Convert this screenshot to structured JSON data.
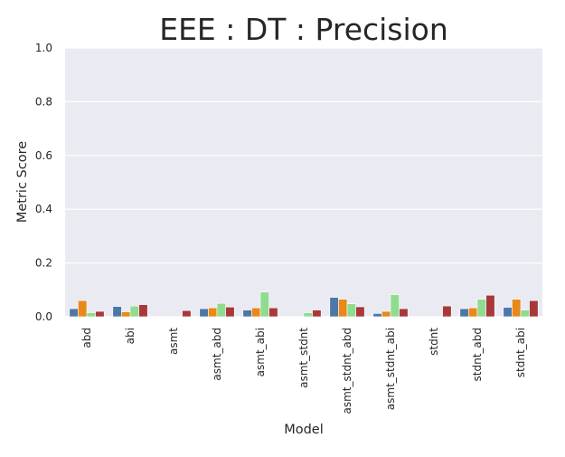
{
  "chart_data": {
    "type": "bar",
    "title": "EEE : DT : Precision",
    "xlabel": "Model",
    "ylabel": "Metric Score",
    "ylim": [
      0,
      1.0
    ],
    "yticks": [
      "0.0",
      "0.2",
      "0.4",
      "0.6",
      "0.8",
      "1.0"
    ],
    "grid": true,
    "categories": [
      "abd",
      "abi",
      "asmt",
      "asmt_abd",
      "asmt_abi",
      "asmt_stdnt",
      "asmt_stdnt_abd",
      "asmt_stdnt_abi",
      "stdnt",
      "stdnt_abd",
      "stdnt_abi"
    ],
    "series": [
      {
        "color": "#4c78a8",
        "values": [
          0.03,
          0.038,
          0.0,
          0.03,
          0.025,
          0.0,
          0.072,
          0.012,
          0.0,
          0.03,
          0.035
        ]
      },
      {
        "color": "#e8891a",
        "values": [
          0.06,
          0.018,
          0.0,
          0.033,
          0.033,
          0.0,
          0.065,
          0.02,
          0.0,
          0.033,
          0.065
        ]
      },
      {
        "color": "#8fdc8f",
        "values": [
          0.015,
          0.04,
          0.0,
          0.05,
          0.092,
          0.015,
          0.048,
          0.082,
          0.0,
          0.065,
          0.025
        ]
      },
      {
        "color": "#a8383a",
        "values": [
          0.02,
          0.045,
          0.023,
          0.036,
          0.033,
          0.025,
          0.037,
          0.03,
          0.04,
          0.08,
          0.06
        ]
      }
    ],
    "colors": {
      "plot_background": "#eaeaf2",
      "grid": "#ffffff",
      "text": "#262626"
    }
  }
}
